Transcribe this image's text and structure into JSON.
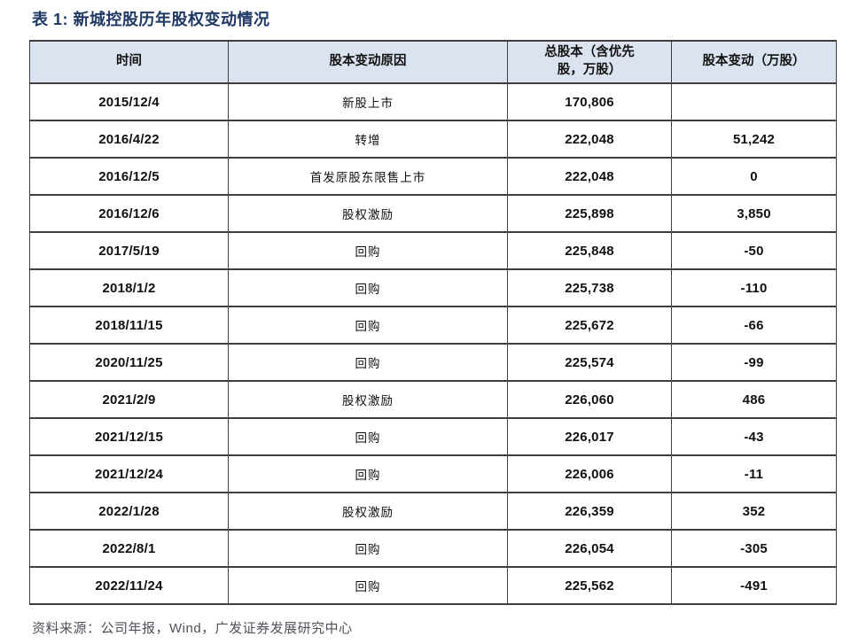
{
  "title": "表 1: 新城控股历年股权变动情况",
  "table": {
    "headers": {
      "time": "时间",
      "reason": "股本变动原因",
      "total_shares": "总股本（含优先\n股，万股）",
      "share_change": "股本变动（万股）"
    },
    "rows": [
      [
        "2015/12/4",
        "新股上市",
        "170,806",
        ""
      ],
      [
        "2016/4/22",
        "转增",
        "222,048",
        "51,242"
      ],
      [
        "2016/12/5",
        "首发原股东限售上市",
        "222,048",
        "0"
      ],
      [
        "2016/12/6",
        "股权激励",
        "225,898",
        "3,850"
      ],
      [
        "2017/5/19",
        "回购",
        "225,848",
        "-50"
      ],
      [
        "2018/1/2",
        "回购",
        "225,738",
        "-110"
      ],
      [
        "2018/11/15",
        "回购",
        "225,672",
        "-66"
      ],
      [
        "2020/11/25",
        "回购",
        "225,574",
        "-99"
      ],
      [
        "2021/2/9",
        "股权激励",
        "226,060",
        "486"
      ],
      [
        "2021/12/15",
        "回购",
        "226,017",
        "-43"
      ],
      [
        "2021/12/24",
        "回购",
        "226,006",
        "-11"
      ],
      [
        "2022/1/28",
        "股权激励",
        "226,359",
        "352"
      ],
      [
        "2022/8/1",
        "回购",
        "226,054",
        "-305"
      ],
      [
        "2022/11/24",
        "回购",
        "225,562",
        "-491"
      ]
    ]
  },
  "footer": {
    "source": "资料来源：公司年报，Wind，广发证券发展研究中心"
  },
  "colors": {
    "title": "#1f3864",
    "header_bg": "#dce3f0",
    "border": "#3f3f3f",
    "text": "#111111",
    "footer": "#4f5159"
  }
}
